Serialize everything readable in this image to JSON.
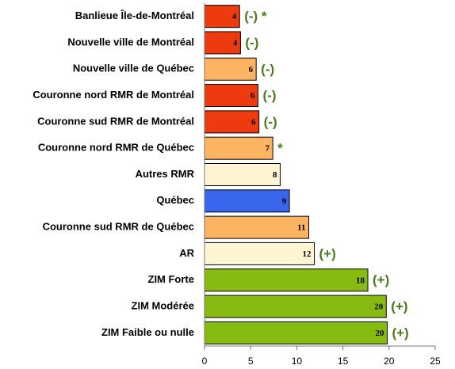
{
  "chart_data": {
    "type": "bar",
    "orientation": "horizontal",
    "categories": [
      "Banlieue Île-de-Montréal",
      "Nouvelle ville de Montréal",
      "Nouvelle ville de Québec",
      "Couronne nord RMR de Montréal",
      "Couronne sud  RMR de Montréal",
      "Couronne nord RMR de Québec",
      "Autres RMR",
      "Québec",
      "Couronne sud RMR de Québec",
      "AR",
      "ZIM Forte",
      "ZIM Modérée",
      "ZIM Faible ou nulle"
    ],
    "values": [
      3.8,
      3.9,
      5.6,
      5.8,
      5.9,
      7.4,
      8.2,
      9.2,
      11.3,
      11.9,
      17.7,
      19.7,
      19.8
    ],
    "value_labels": [
      "4",
      "4",
      "6",
      "6",
      "6",
      "7",
      "8",
      "9",
      "11",
      "12",
      "18",
      "20",
      "20"
    ],
    "colors": [
      "#ee3a0f",
      "#ee3a0f",
      "#fdb462",
      "#ee3a0f",
      "#ee3a0f",
      "#fdb462",
      "#fff5d2",
      "#3a66ee",
      "#fdb462",
      "#fff5d2",
      "#88bb11",
      "#88bb11",
      "#88bb11"
    ],
    "annotations": [
      "(-) *",
      "(-)",
      "(-)",
      "(-)",
      "(-)",
      "*",
      null,
      null,
      null,
      "(+)",
      "(+)",
      "(+)",
      "(+)"
    ],
    "xlim": [
      0,
      25
    ],
    "xticks": [
      0,
      5,
      10,
      15,
      20,
      25
    ]
  }
}
